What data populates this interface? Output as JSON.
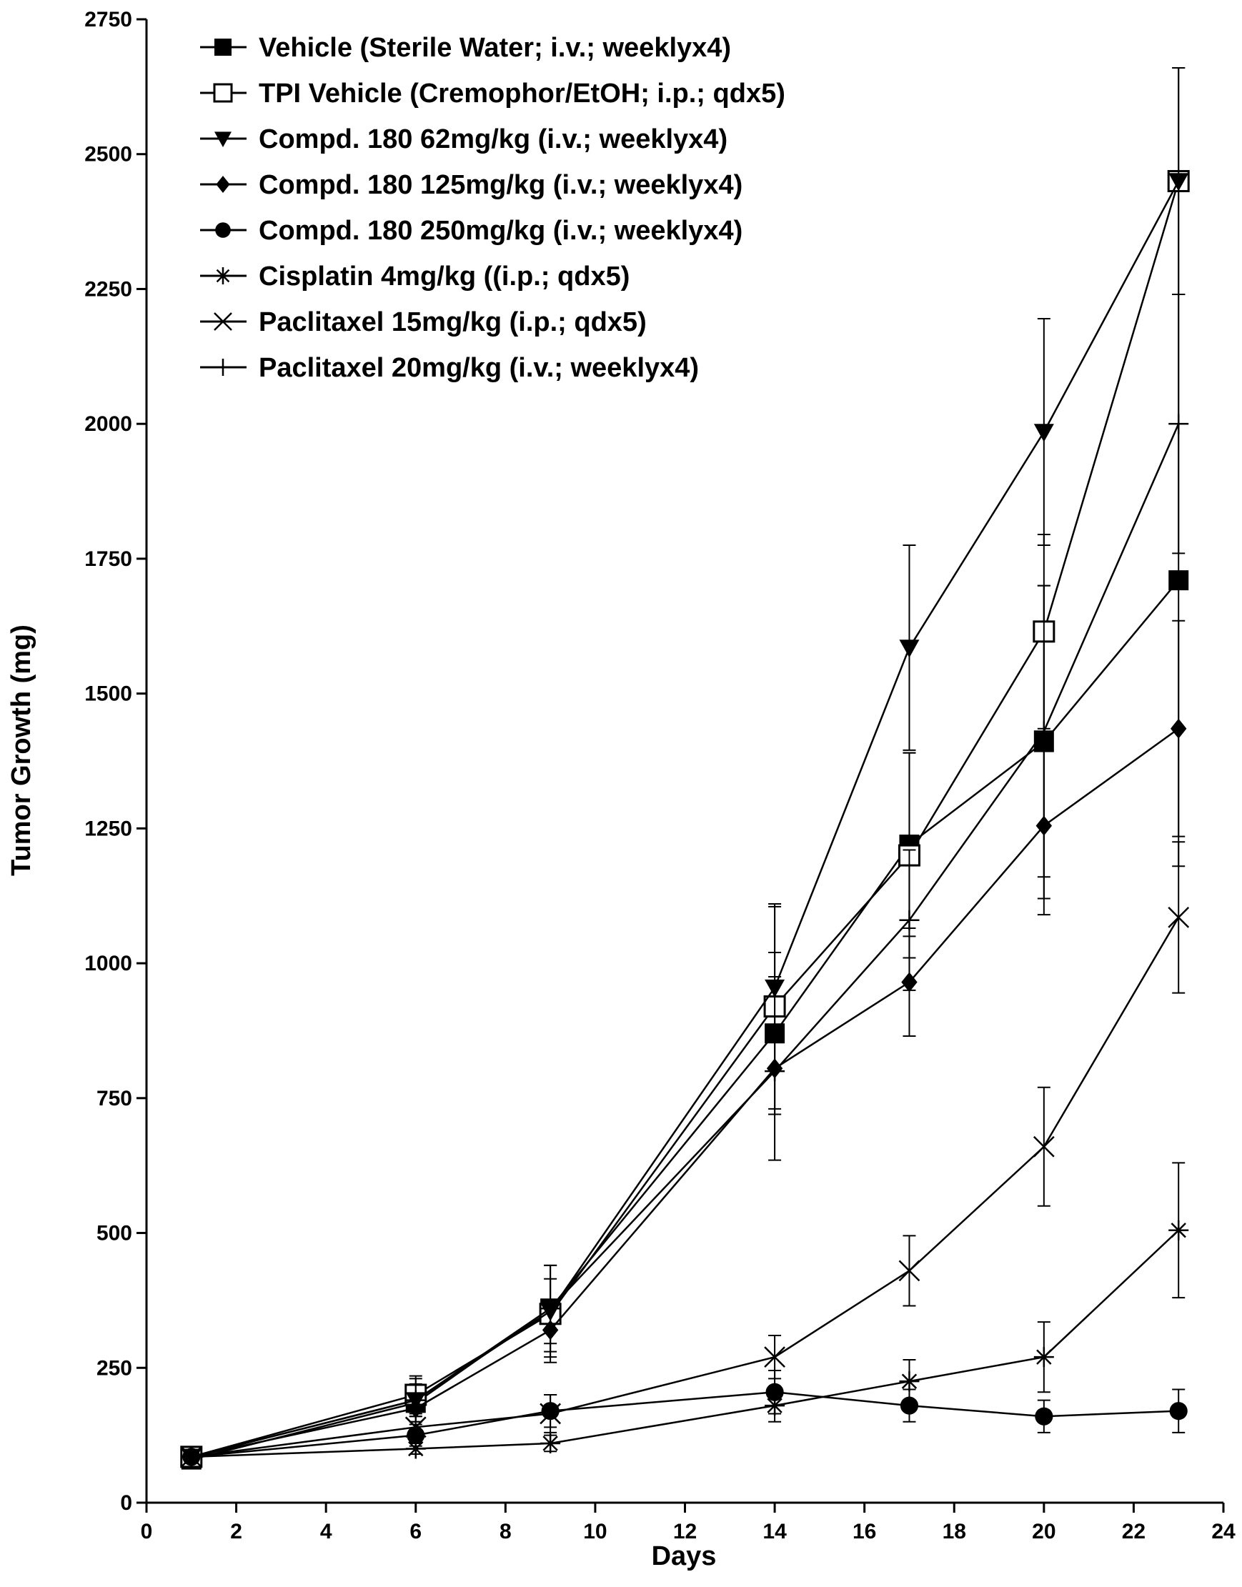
{
  "chart_data": {
    "type": "line",
    "title": "",
    "xlabel": "Days",
    "ylabel": "Tumor Growth (mg)",
    "xlim": [
      0,
      24
    ],
    "ylim": [
      0,
      2750
    ],
    "xticks": [
      0,
      2,
      4,
      6,
      8,
      10,
      12,
      14,
      16,
      18,
      20,
      22,
      24
    ],
    "yticks": [
      0,
      250,
      500,
      750,
      1000,
      1250,
      1500,
      1750,
      2000,
      2250,
      2500,
      2750
    ],
    "grid": false,
    "legend_position": "top-left",
    "x": [
      1,
      6,
      9,
      14,
      17,
      20,
      23
    ],
    "series": [
      {
        "name": "Vehicle (Sterile Water; i.v.; weeklyx4)",
        "marker": "square-filled",
        "values": [
          80,
          185,
          360,
          870,
          1220,
          1410,
          1710
        ],
        "errors": [
          0,
          0,
          0,
          150,
          170,
          290,
          530
        ]
      },
      {
        "name": "TPI Vehicle (Cremophor/EtOH; i.p.; qdx5)",
        "marker": "square-open",
        "values": [
          85,
          200,
          350,
          920,
          1200,
          1615,
          2450
        ],
        "errors": [
          0,
          35,
          90,
          190,
          190,
          180,
          210
        ]
      },
      {
        "name": "Compd. 180 62mg/kg (i.v.; weeklyx4)",
        "marker": "triangle-down-filled",
        "values": [
          85,
          190,
          355,
          955,
          1585,
          1985,
          2450
        ],
        "errors": [
          0,
          30,
          60,
          150,
          190,
          210,
          210
        ]
      },
      {
        "name": "Compd. 180 125mg/kg (i.v.; weeklyx4)",
        "marker": "diamond-filled",
        "values": [
          85,
          175,
          320,
          805,
          965,
          1255,
          1435
        ],
        "errors": [
          0,
          25,
          50,
          170,
          100,
          165,
          200
        ]
      },
      {
        "name": "Compd. 180 250mg/kg (i.v.; weeklyx4)",
        "marker": "circle-filled",
        "values": [
          85,
          125,
          170,
          205,
          180,
          160,
          170
        ],
        "errors": [
          0,
          20,
          30,
          40,
          30,
          30,
          40
        ]
      },
      {
        "name": "Cisplatin 4mg/kg ((i.p.; qdx5)",
        "marker": "asterisk",
        "values": [
          85,
          100,
          110,
          180,
          225,
          270,
          505
        ],
        "errors": [
          0,
          10,
          15,
          30,
          40,
          65,
          125
        ]
      },
      {
        "name": "Paclitaxel 15mg/kg (i.p.; qdx5)",
        "marker": "x",
        "values": [
          85,
          140,
          165,
          270,
          430,
          660,
          1085
        ],
        "errors": [
          0,
          20,
          35,
          40,
          65,
          110,
          140
        ]
      },
      {
        "name": "Paclitaxel 20mg/kg (i.v.; weeklyx4)",
        "marker": "plus",
        "values": [
          85,
          190,
          360,
          800,
          1080,
          1430,
          2000
        ],
        "errors": [
          0,
          40,
          80,
          80,
          130,
          270,
          240
        ]
      }
    ]
  }
}
